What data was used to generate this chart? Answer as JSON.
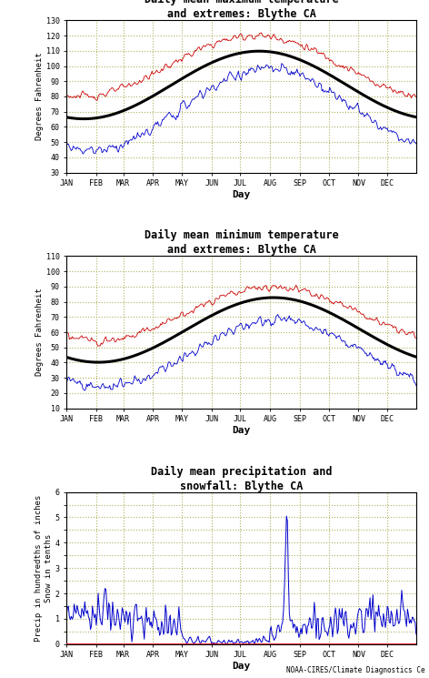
{
  "title1": "Daily mean maximum temperature\nand extremes: Blythe CA",
  "title2": "Daily mean minimum temperature\nand extremes: Blythe CA",
  "title3": "Daily mean precipitation and\nsnowfall: Blythe CA",
  "ylabel1": "Degrees Fahrenheit",
  "ylabel2": "Degrees Fahrenheit",
  "ylabel3": "Precip in hundredths of inches\nSnow in tenths",
  "xlabel": "Day",
  "footer": "NOAA-CIRES/Climate Diagnostics Ce",
  "months": [
    "JAN",
    "FEB",
    "MAR",
    "APR",
    "MAY",
    "JUN",
    "JUL",
    "AUG",
    "SEP",
    "OCT",
    "NOV",
    "DEC"
  ],
  "background_color": "#ffffff",
  "grid_color": "#b0b060",
  "plot_bg": "#ffffff",
  "black": "#000000",
  "red": "#cc0000",
  "blue": "#0000cc",
  "panel1_ylim": [
    30,
    130
  ],
  "panel1_yticks": [
    30,
    40,
    50,
    60,
    70,
    80,
    90,
    100,
    110,
    120,
    130
  ],
  "panel2_ylim": [
    10,
    110
  ],
  "panel2_yticks": [
    10,
    20,
    30,
    40,
    50,
    60,
    70,
    80,
    90,
    100,
    110
  ],
  "panel3_ylim": [
    0,
    6
  ],
  "panel3_yticks": [
    0,
    0.5,
    1,
    1.5,
    2,
    2.5,
    3,
    3.5,
    4,
    4.5,
    5,
    5.5,
    6
  ],
  "panel3_yticklabels": [
    "0",
    "",
    "1",
    "",
    "2",
    "",
    "3",
    "",
    "4",
    "",
    "5",
    "",
    "6"
  ]
}
